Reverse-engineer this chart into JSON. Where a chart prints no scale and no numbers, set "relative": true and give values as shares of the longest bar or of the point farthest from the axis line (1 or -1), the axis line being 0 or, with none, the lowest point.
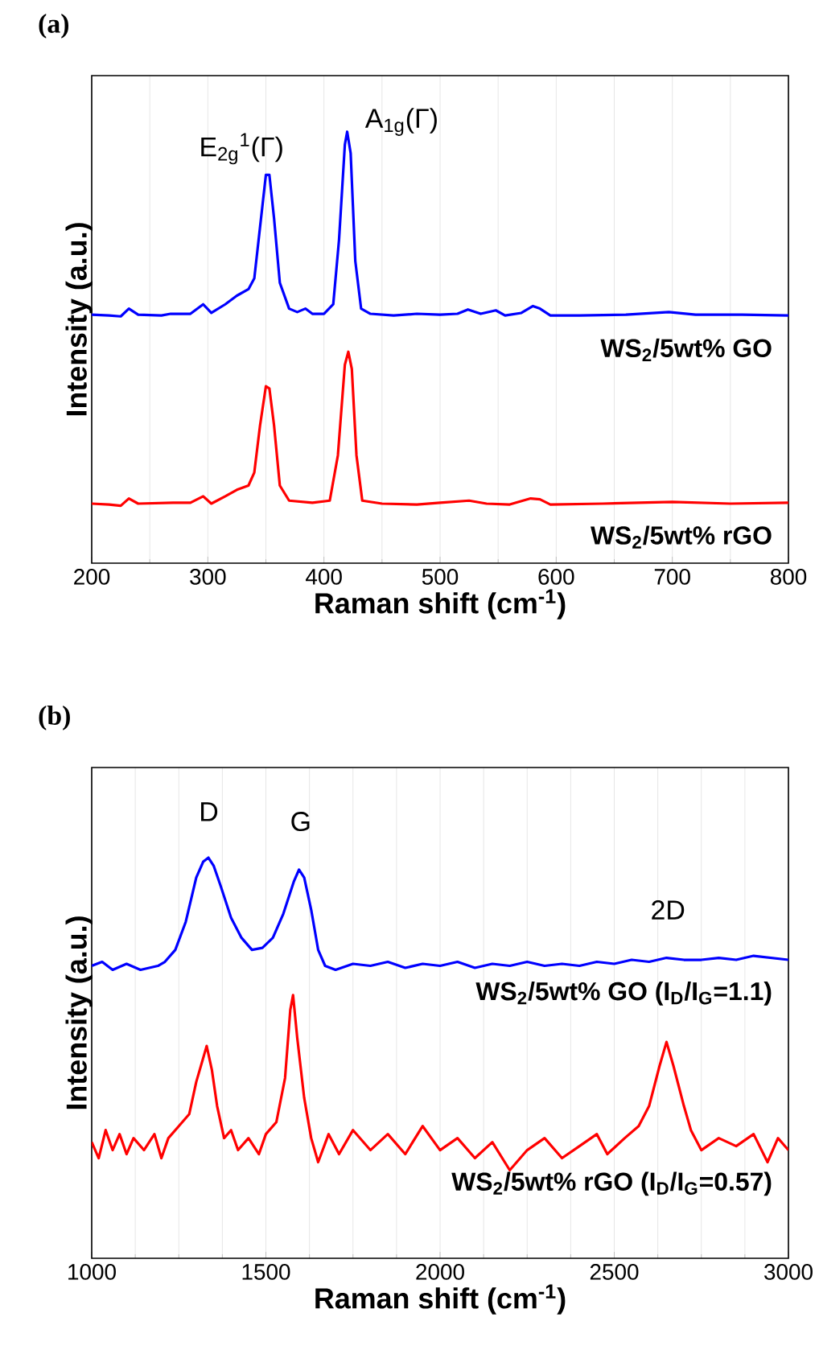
{
  "chart_data": [
    {
      "type": "line",
      "title": "(a)",
      "xlabel": "Raman shift (cm$^{-1}$)",
      "ylabel": "Intensity (a.u.)",
      "relative": true,
      "grid": "x",
      "legend": false,
      "xlim": [
        200,
        800
      ],
      "xticks": [
        200,
        300,
        400,
        500,
        600,
        700,
        800
      ],
      "annotations": [
        "E$_{2g}$$^{1}$(Γ)",
        "A$_{1g}$(Γ)"
      ],
      "series": [
        {
          "name": "WS$_{2}$/5wt% GO",
          "color": "#0000ff",
          "x": [
            200,
            215,
            225,
            232,
            240,
            260,
            268,
            285,
            296,
            303,
            315,
            325,
            335,
            340,
            345,
            350,
            353,
            357,
            362,
            370,
            377,
            384,
            390,
            400,
            408,
            413,
            418,
            420,
            423,
            427,
            432,
            440,
            460,
            480,
            500,
            515,
            524,
            535,
            548,
            556,
            570,
            580,
            586,
            595,
            620,
            660,
            697,
            720,
            760,
            800
          ],
          "values": [
            0.576,
            0.574,
            0.572,
            0.59,
            0.576,
            0.574,
            0.578,
            0.578,
            0.6,
            0.58,
            0.6,
            0.62,
            0.635,
            0.66,
            0.78,
            0.9,
            0.9,
            0.8,
            0.65,
            0.59,
            0.582,
            0.59,
            0.578,
            0.578,
            0.6,
            0.75,
            0.97,
            1.0,
            0.95,
            0.7,
            0.59,
            0.578,
            0.574,
            0.578,
            0.576,
            0.578,
            0.588,
            0.578,
            0.586,
            0.574,
            0.58,
            0.596,
            0.59,
            0.574,
            0.574,
            0.576,
            0.582,
            0.576,
            0.576,
            0.574
          ]
        },
        {
          "name": "WS$_{2}$/5wt% rGO",
          "color": "#ff0000",
          "x": [
            200,
            215,
            225,
            232,
            240,
            270,
            285,
            296,
            303,
            315,
            325,
            335,
            340,
            345,
            350,
            353,
            357,
            362,
            370,
            390,
            405,
            412,
            418,
            421,
            424,
            428,
            433,
            450,
            480,
            500,
            525,
            540,
            560,
            578,
            586,
            595,
            640,
            700,
            750,
            800
          ],
          "values": [
            0.138,
            0.136,
            0.133,
            0.15,
            0.138,
            0.14,
            0.14,
            0.155,
            0.138,
            0.155,
            0.17,
            0.18,
            0.21,
            0.32,
            0.41,
            0.405,
            0.32,
            0.18,
            0.145,
            0.14,
            0.145,
            0.25,
            0.46,
            0.49,
            0.45,
            0.25,
            0.145,
            0.138,
            0.136,
            0.14,
            0.145,
            0.138,
            0.136,
            0.15,
            0.148,
            0.136,
            0.138,
            0.142,
            0.138,
            0.14
          ]
        }
      ]
    },
    {
      "type": "line",
      "title": "(b)",
      "xlabel": "Raman shift (cm$^{-1}$)",
      "ylabel": "Intensity (a.u.)",
      "relative": true,
      "grid": "x",
      "legend": false,
      "xlim": [
        1000,
        3000
      ],
      "xticks": [
        1000,
        1500,
        2000,
        2500,
        3000
      ],
      "annotations": [
        "D",
        "G",
        "2D"
      ],
      "series": [
        {
          "name": "WS$_{2}$/5wt% GO (I$_{D}$/I$_{G}$=1.1)",
          "color": "#0000ff",
          "x": [
            1000,
            1030,
            1060,
            1100,
            1140,
            1190,
            1210,
            1240,
            1270,
            1300,
            1320,
            1335,
            1350,
            1370,
            1400,
            1430,
            1460,
            1490,
            1520,
            1550,
            1580,
            1595,
            1610,
            1630,
            1650,
            1670,
            1700,
            1750,
            1800,
            1850,
            1900,
            1950,
            2000,
            2050,
            2100,
            2150,
            2200,
            2250,
            2300,
            2350,
            2400,
            2450,
            2500,
            2550,
            2600,
            2650,
            2700,
            2750,
            2800,
            2850,
            2900,
            2950,
            3000
          ],
          "values": [
            0.73,
            0.74,
            0.72,
            0.735,
            0.72,
            0.73,
            0.74,
            0.77,
            0.84,
            0.95,
            0.99,
            1.0,
            0.98,
            0.93,
            0.85,
            0.8,
            0.77,
            0.775,
            0.8,
            0.86,
            0.94,
            0.97,
            0.95,
            0.87,
            0.77,
            0.73,
            0.72,
            0.735,
            0.73,
            0.74,
            0.725,
            0.735,
            0.73,
            0.74,
            0.725,
            0.735,
            0.73,
            0.74,
            0.73,
            0.735,
            0.73,
            0.74,
            0.735,
            0.745,
            0.74,
            0.75,
            0.745,
            0.745,
            0.75,
            0.745,
            0.755,
            0.75,
            0.745
          ]
        },
        {
          "name": "WS$_{2}$/5wt% rGO (I$_{D}$/I$_{G}$=0.57)",
          "color": "#ff0000",
          "x": [
            1000,
            1020,
            1040,
            1060,
            1080,
            1100,
            1120,
            1150,
            1180,
            1200,
            1220,
            1250,
            1280,
            1300,
            1320,
            1330,
            1345,
            1360,
            1380,
            1400,
            1420,
            1450,
            1480,
            1500,
            1530,
            1555,
            1570,
            1578,
            1590,
            1610,
            1630,
            1650,
            1680,
            1710,
            1750,
            1800,
            1850,
            1900,
            1950,
            2000,
            2050,
            2100,
            2150,
            2200,
            2250,
            2300,
            2350,
            2400,
            2450,
            2480,
            2530,
            2570,
            2600,
            2630,
            2650,
            2670,
            2700,
            2720,
            2750,
            2800,
            2850,
            2900,
            2940,
            2970,
            3000
          ],
          "values": [
            0.29,
            0.25,
            0.32,
            0.27,
            0.31,
            0.26,
            0.3,
            0.27,
            0.31,
            0.25,
            0.3,
            0.33,
            0.36,
            0.44,
            0.5,
            0.53,
            0.47,
            0.38,
            0.3,
            0.32,
            0.27,
            0.3,
            0.26,
            0.31,
            0.34,
            0.45,
            0.62,
            0.657,
            0.55,
            0.4,
            0.3,
            0.24,
            0.31,
            0.26,
            0.32,
            0.27,
            0.31,
            0.26,
            0.33,
            0.27,
            0.3,
            0.25,
            0.29,
            0.22,
            0.27,
            0.3,
            0.25,
            0.28,
            0.31,
            0.26,
            0.3,
            0.33,
            0.38,
            0.48,
            0.54,
            0.48,
            0.38,
            0.32,
            0.27,
            0.3,
            0.28,
            0.31,
            0.24,
            0.3,
            0.27
          ]
        }
      ]
    }
  ]
}
